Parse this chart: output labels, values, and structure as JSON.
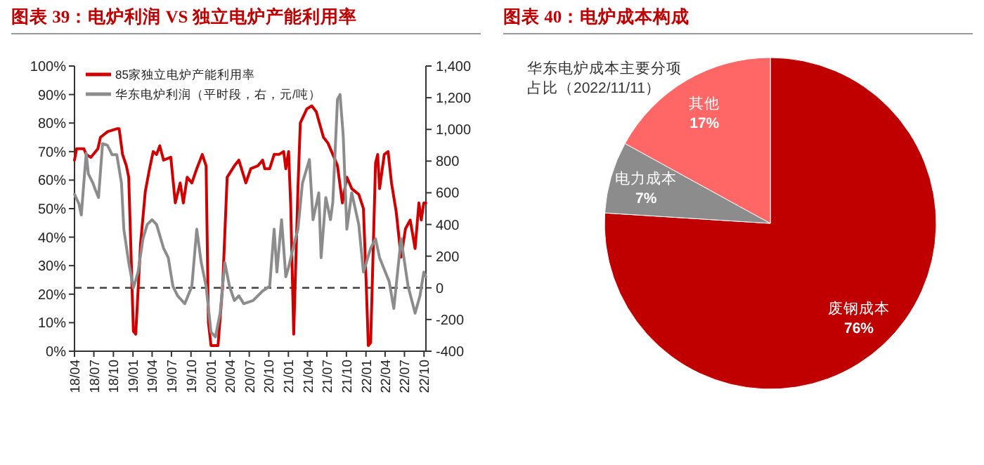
{
  "chart_data": [
    {
      "type": "line",
      "title": "图表 39：电炉利润 VS 独立电炉产能利用率",
      "legend": "top left",
      "xlim": [
        "2018-04-01",
        "2022-10-10"
      ],
      "xticks": [
        {
          "value": "2018-04-01",
          "label": "18/04"
        },
        {
          "value": "2018-07-01",
          "label": "18/07"
        },
        {
          "value": "2018-10-01",
          "label": "18/10"
        },
        {
          "value": "2019-01-01",
          "label": "19/01"
        },
        {
          "value": "2019-04-01",
          "label": "19/04"
        },
        {
          "value": "2019-07-01",
          "label": "19/07"
        },
        {
          "value": "2019-10-01",
          "label": "19/10"
        },
        {
          "value": "2020-01-01",
          "label": "20/01"
        },
        {
          "value": "2020-04-01",
          "label": "20/04"
        },
        {
          "value": "2020-07-01",
          "label": "20/07"
        },
        {
          "value": "2020-10-01",
          "label": "20/10"
        },
        {
          "value": "2021-01-01",
          "label": "21/01"
        },
        {
          "value": "2021-04-01",
          "label": "21/04"
        },
        {
          "value": "2021-07-01",
          "label": "21/07"
        },
        {
          "value": "2021-10-01",
          "label": "21/10"
        },
        {
          "value": "2022-01-01",
          "label": "22/01"
        },
        {
          "value": "2022-04-01",
          "label": "22/04"
        },
        {
          "value": "2022-07-01",
          "label": "22/07"
        },
        {
          "value": "2022-10-01",
          "label": "22/10"
        }
      ],
      "ylim": [
        0,
        100
      ],
      "yticks": [
        {
          "value": 0,
          "label": "0%"
        },
        {
          "value": 10,
          "label": "10%"
        },
        {
          "value": 20,
          "label": "20%"
        },
        {
          "value": 30,
          "label": "30%"
        },
        {
          "value": 40,
          "label": "40%"
        },
        {
          "value": 50,
          "label": "50%"
        },
        {
          "value": 60,
          "label": "60%"
        },
        {
          "value": 70,
          "label": "70%"
        },
        {
          "value": 80,
          "label": "80%"
        },
        {
          "value": 90,
          "label": "90%"
        },
        {
          "value": 100,
          "label": "100%"
        }
      ],
      "y2lim": [
        -400,
        1400
      ],
      "y2ticks": [
        -400,
        -200,
        0,
        200,
        400,
        600,
        800,
        {
          "value": 1000,
          "label": "1,000"
        },
        {
          "value": 1200,
          "label": "1,200"
        },
        {
          "value": 1400,
          "label": "1,400"
        }
      ],
      "ref_lines": [
        {
          "axis": "y2",
          "value": 0,
          "color": "#404040",
          "line_style": "dashed"
        }
      ],
      "series": [
        {
          "name": "85家独立电炉产能利用率",
          "color": "#d00000",
          "x": [
            "2018-04-01",
            "2018-04-11",
            "2018-05-15",
            "2018-05-26",
            "2018-06-17",
            "2018-07-20",
            "2018-08-01",
            "2018-09-04",
            "2018-10-17",
            "2018-10-28",
            "2018-11-13",
            "2018-12-01",
            "2018-12-12",
            "2019-01-03",
            "2019-01-14",
            "2019-02-06",
            "2019-02-28",
            "2019-03-20",
            "2019-04-06",
            "2019-04-22",
            "2019-05-07",
            "2019-05-25",
            "2019-06-28",
            "2019-07-19",
            "2019-08-11",
            "2019-08-26",
            "2019-09-13",
            "2019-10-05",
            "2019-10-28",
            "2019-11-23",
            "2019-12-11",
            "2019-12-22",
            "2020-01-03",
            "2020-02-05",
            "2020-02-27",
            "2020-03-19",
            "2020-04-22",
            "2020-05-13",
            "2020-06-15",
            "2020-07-08",
            "2020-08-10",
            "2020-09-02",
            "2020-09-12",
            "2020-10-05",
            "2020-10-26",
            "2020-11-18",
            "2020-12-10",
            "2020-12-20",
            "2021-01-02",
            "2021-01-12",
            "2021-01-26",
            "2021-02-15",
            "2021-02-26",
            "2021-03-29",
            "2021-04-21",
            "2021-05-12",
            "2021-06-15",
            "2021-07-06",
            "2021-07-29",
            "2021-08-20",
            "2021-09-12",
            "2021-10-03",
            "2021-10-26",
            "2021-11-28",
            "2021-12-20",
            "2022-01-01",
            "2022-01-12",
            "2022-01-23",
            "2022-02-15",
            "2022-02-25",
            "2022-03-06",
            "2022-03-28",
            "2022-04-15",
            "2022-05-01",
            "2022-05-23",
            "2022-06-15",
            "2022-07-06",
            "2022-07-28",
            "2022-08-20",
            "2022-09-07",
            "2022-09-18",
            "2022-09-30",
            "2022-10-10"
          ],
          "values": [
            67,
            71,
            71,
            69,
            68,
            71,
            75,
            77,
            78,
            78,
            69,
            65,
            61,
            7,
            6,
            38,
            56,
            64,
            70,
            69,
            72,
            67,
            68,
            52,
            59,
            52,
            61,
            59,
            64,
            69,
            65,
            10,
            2,
            2,
            23,
            61,
            65,
            67,
            59,
            64,
            65,
            67,
            64,
            64,
            69,
            69,
            70,
            64,
            70,
            51,
            6,
            57,
            80,
            85,
            86,
            84,
            75,
            73,
            69,
            65,
            52,
            61,
            57,
            55,
            50,
            26,
            2,
            3,
            66,
            69,
            57,
            69,
            70,
            59,
            49,
            33,
            43,
            46,
            36,
            52,
            46,
            52,
            52
          ]
        },
        {
          "name": "华东电炉利润（平时段，右，元/吨）",
          "color": "#8c8c8c",
          "axis": "y2",
          "x": [
            "2018-04-01",
            "2018-04-22",
            "2018-05-03",
            "2018-05-26",
            "2018-06-05",
            "2018-06-27",
            "2018-07-08",
            "2018-07-23",
            "2018-08-11",
            "2018-09-03",
            "2018-09-25",
            "2018-10-17",
            "2018-11-08",
            "2018-11-19",
            "2018-12-12",
            "2019-01-03",
            "2019-01-25",
            "2019-02-17",
            "2019-03-09",
            "2019-04-01",
            "2019-04-22",
            "2019-05-25",
            "2019-06-16",
            "2019-07-08",
            "2019-07-30",
            "2019-09-02",
            "2019-10-05",
            "2019-10-28",
            "2019-11-18",
            "2019-12-11",
            "2020-01-03",
            "2020-01-24",
            "2020-02-15",
            "2020-03-08",
            "2020-03-30",
            "2020-04-22",
            "2020-05-13",
            "2020-06-05",
            "2020-07-19",
            "2020-09-02",
            "2020-10-05",
            "2020-10-26",
            "2020-11-08",
            "2020-11-30",
            "2020-12-20",
            "2021-01-02",
            "2021-01-23",
            "2021-02-15",
            "2021-03-08",
            "2021-04-10",
            "2021-04-27",
            "2021-05-24",
            "2021-06-04",
            "2021-06-26",
            "2021-07-18",
            "2021-07-29",
            "2021-08-20",
            "2021-09-01",
            "2021-09-16",
            "2021-10-03",
            "2021-10-26",
            "2021-11-28",
            "2021-12-20",
            "2022-01-23",
            "2022-02-15",
            "2022-03-06",
            "2022-04-20",
            "2022-05-12",
            "2022-06-15",
            "2022-07-18",
            "2022-08-20",
            "2022-09-12",
            "2022-09-30",
            "2022-10-10"
          ],
          "values": [
            590,
            530,
            460,
            850,
            720,
            660,
            620,
            570,
            910,
            900,
            840,
            840,
            660,
            370,
            160,
            0,
            100,
            310,
            400,
            430,
            400,
            250,
            190,
            10,
            -50,
            -100,
            10,
            370,
            160,
            10,
            -280,
            -310,
            -160,
            160,
            10,
            -80,
            -50,
            -100,
            -80,
            -20,
            10,
            370,
            100,
            430,
            70,
            130,
            250,
            370,
            660,
            810,
            430,
            600,
            190,
            570,
            430,
            540,
            1190,
            1220,
            960,
            370,
            600,
            400,
            100,
            250,
            310,
            190,
            40,
            -130,
            310,
            10,
            -160,
            -50,
            100,
            70
          ]
        }
      ]
    },
    {
      "type": "pie",
      "title": "图表 40：电炉成本构成",
      "annotations": [
        "华东电炉成本主要分项占比（2022/11/11）"
      ],
      "categories": [
        "废钢成本",
        "电力成本",
        "其他"
      ],
      "values": [
        76,
        7,
        17
      ],
      "colors": [
        "#c00000",
        "#8c8c8c",
        "#ff6666"
      ],
      "data_labels": true,
      "value_labels": [
        "76%",
        "7%",
        "17%"
      ]
    }
  ]
}
